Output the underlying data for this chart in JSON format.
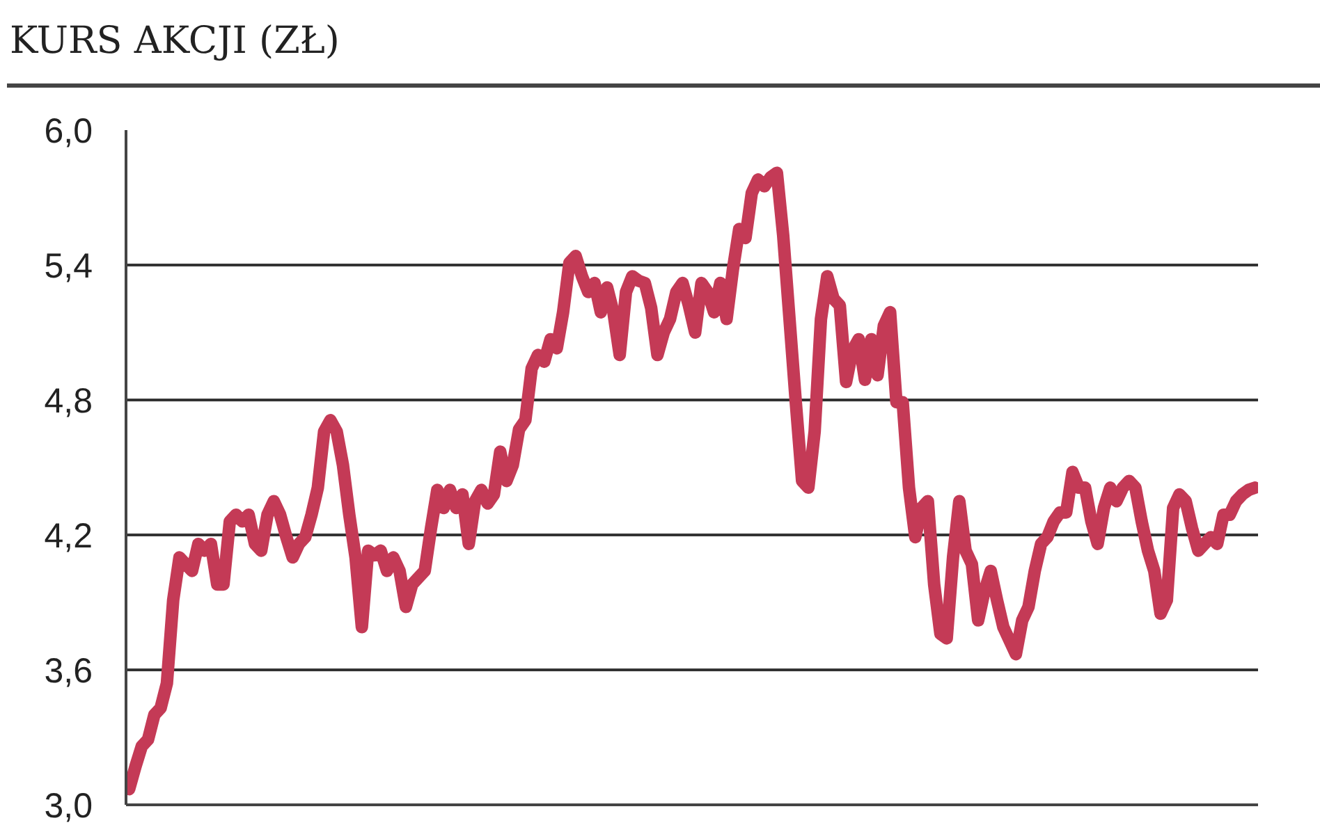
{
  "chart_data": {
    "type": "line",
    "title": "KURS AKCJI (ZŁ)",
    "categories": [
      null,
      null,
      null,
      null,
      null,
      null,
      null,
      null,
      null,
      null,
      null,
      null,
      null,
      null,
      null,
      null,
      null,
      null,
      null,
      null,
      null,
      null,
      null,
      null,
      null,
      null,
      null,
      null,
      null,
      null,
      null,
      null,
      null,
      null,
      null,
      null,
      null,
      null,
      null,
      null,
      null,
      null,
      null,
      null,
      null,
      null,
      null,
      null,
      null,
      null,
      null,
      null,
      null,
      null,
      null,
      null,
      null,
      null,
      null,
      null,
      null,
      null,
      null,
      null,
      null,
      null,
      null,
      null,
      null,
      null,
      null,
      null,
      null,
      null,
      null,
      null,
      null,
      null,
      null,
      null,
      null,
      null,
      null,
      null,
      null,
      null,
      null,
      null,
      null,
      null,
      null,
      null,
      null,
      null,
      null,
      null,
      null,
      null,
      null,
      null,
      null,
      null,
      null,
      null,
      null,
      null,
      null,
      null,
      null,
      null,
      null,
      null,
      null,
      null,
      null,
      null,
      null,
      null,
      null,
      null,
      null,
      null,
      null,
      null,
      null,
      null,
      null,
      null,
      null,
      null,
      null,
      null,
      null,
      null,
      null,
      null,
      null,
      null,
      null,
      null,
      null,
      null,
      null,
      null,
      null,
      null,
      null,
      null,
      null,
      null,
      null,
      null,
      null,
      null,
      null,
      null,
      null,
      null,
      null,
      null,
      null,
      null,
      null,
      null,
      null,
      null,
      null,
      null,
      null,
      null,
      null,
      null,
      null,
      null,
      null,
      null,
      null,
      null,
      null,
      null
    ],
    "series": [
      {
        "color": "#c43a56",
        "values": [
          3.07,
          3.17,
          3.26,
          3.29,
          3.4,
          3.43,
          3.54,
          3.91,
          4.1,
          4.07,
          4.04,
          4.16,
          4.13,
          4.16,
          3.98,
          3.98,
          4.26,
          4.29,
          4.26,
          4.29,
          4.16,
          4.13,
          4.29,
          4.35,
          4.29,
          4.19,
          4.1,
          4.16,
          4.19,
          4.29,
          4.41,
          4.66,
          4.71,
          4.66,
          4.51,
          4.29,
          4.1,
          3.79,
          4.13,
          4.11,
          4.13,
          4.04,
          4.1,
          4.04,
          3.88,
          3.98,
          4.01,
          4.04,
          4.23,
          4.4,
          4.32,
          4.4,
          4.32,
          4.38,
          4.16,
          4.35,
          4.4,
          4.34,
          4.38,
          4.57,
          4.44,
          4.51,
          4.67,
          4.71,
          4.94,
          5.0,
          4.97,
          5.07,
          5.03,
          5.19,
          5.41,
          5.44,
          5.35,
          5.28,
          5.32,
          5.19,
          5.3,
          5.19,
          5.0,
          5.28,
          5.35,
          5.33,
          5.32,
          5.21,
          5.0,
          5.1,
          5.16,
          5.28,
          5.32,
          5.22,
          5.1,
          5.32,
          5.28,
          5.19,
          5.32,
          5.16,
          5.38,
          5.56,
          5.52,
          5.72,
          5.78,
          5.75,
          5.79,
          5.81,
          5.53,
          5.16,
          4.79,
          4.44,
          4.41,
          4.66,
          5.16,
          5.35,
          5.25,
          5.22,
          4.88,
          5.02,
          5.07,
          4.89,
          5.07,
          4.91,
          5.13,
          5.19,
          4.79,
          4.79,
          4.41,
          4.19,
          4.32,
          4.35,
          3.98,
          3.76,
          3.74,
          4.1,
          4.35,
          4.13,
          4.07,
          3.82,
          3.95,
          4.04,
          3.91,
          3.79,
          3.73,
          3.67,
          3.82,
          3.88,
          4.04,
          4.16,
          4.19,
          4.26,
          4.3,
          4.3,
          4.48,
          4.41,
          4.41,
          4.26,
          4.16,
          4.32,
          4.41,
          4.35,
          4.41,
          4.44,
          4.41,
          4.26,
          4.13,
          4.04,
          3.85,
          3.91,
          4.32,
          4.38,
          4.35,
          4.23,
          4.13,
          4.16,
          4.19,
          4.16,
          4.29,
          4.29,
          4.35,
          4.38,
          4.4,
          4.41
        ]
      }
    ],
    "ylim": [
      3.0,
      6.0
    ],
    "yticks": [
      {
        "value": 3.0,
        "label": "3,0"
      },
      {
        "value": 3.6,
        "label": "3,6"
      },
      {
        "value": 4.2,
        "label": "4,2"
      },
      {
        "value": 4.8,
        "label": "4,8"
      },
      {
        "value": 5.4,
        "label": "5,4"
      },
      {
        "value": 6.0,
        "label": "6,0"
      }
    ],
    "grid": "y",
    "tick_labels": "y",
    "line_style": "solid"
  }
}
